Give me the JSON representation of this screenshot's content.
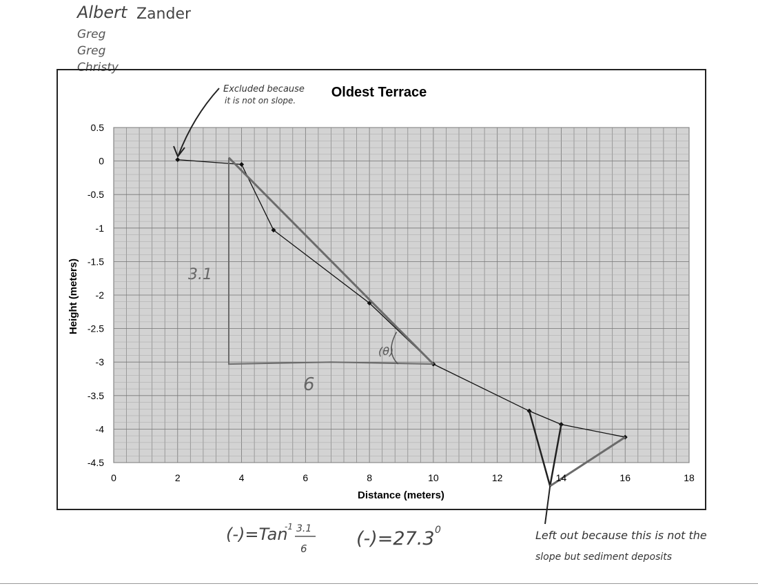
{
  "header": {
    "names": [
      "Albert",
      "Zander",
      "Greg",
      "Greg",
      "Christy"
    ]
  },
  "chart_data": {
    "type": "scatter",
    "title": "Oldest Terrace",
    "xlabel": "Distance (meters)",
    "ylabel": "Height (meters)",
    "xlim": [
      0,
      18
    ],
    "ylim": [
      -4.5,
      0.5
    ],
    "x_ticks": [
      "0",
      "2",
      "4",
      "6",
      "8",
      "10",
      "12",
      "14",
      "16",
      "18"
    ],
    "y_ticks": [
      "0.5",
      "0",
      "-0.5",
      "-1",
      "-1.5",
      "-2",
      "-2.5",
      "-3",
      "-3.5",
      "-4",
      "-4.5"
    ],
    "grid": true,
    "series": [
      {
        "x": [
          2,
          4,
          5,
          8,
          10,
          13,
          14,
          16
        ],
        "y": [
          0.02,
          -0.05,
          -1.03,
          -2.12,
          -3.03,
          -3.73,
          -3.93,
          -4.12
        ]
      }
    ],
    "annotations": {
      "excluded_top": [
        "Excluded because",
        "it is not on slope."
      ],
      "rise_label": "3.1",
      "run_label": "6",
      "angle_symbol": "(θ)",
      "excluded_bottom": [
        "Left out because this is not the",
        "slope but sediment deposits"
      ],
      "formula_lhs": "(-)=Tan",
      "formula_exp": "-1",
      "formula_num": "3.1",
      "formula_den": "6",
      "result": "(-)=27.3",
      "result_deg": "0"
    }
  }
}
